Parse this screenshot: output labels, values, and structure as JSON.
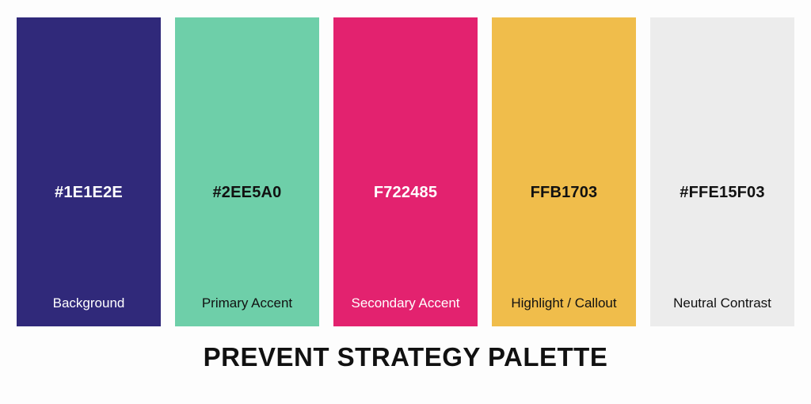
{
  "title": "PREVENT STRATEGY PALETTE",
  "swatches": [
    {
      "hex_label": "#1E1E2E",
      "role": "Background",
      "fill": "#30297a",
      "text_color": "#ffffff"
    },
    {
      "hex_label": "#2EE5A0",
      "role": "Primary Accent",
      "fill": "#6ecfa9",
      "text_color": "#111111"
    },
    {
      "hex_label": "F722485",
      "role": "Secondary Accent",
      "fill": "#e3226f",
      "text_color": "#ffffff"
    },
    {
      "hex_label": "FFB1703",
      "role": "Highlight / Callout",
      "fill": "#f0bd4b",
      "text_color": "#111111"
    },
    {
      "hex_label": "#FFE15F03",
      "role": "Neutral Contrast",
      "fill": "#ececec",
      "text_color": "#111111"
    }
  ]
}
